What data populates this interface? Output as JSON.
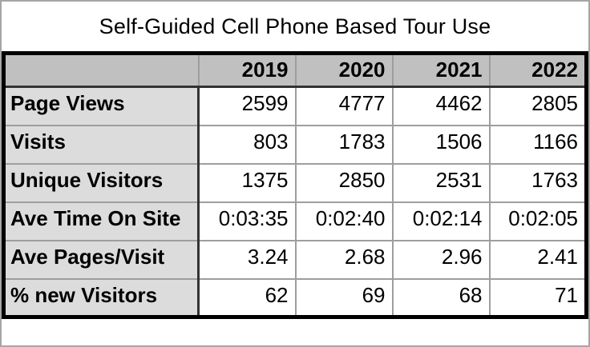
{
  "chart_data": {
    "type": "table",
    "title": "Self-Guided Cell Phone Based Tour Use",
    "columns": [
      "2019",
      "2020",
      "2021",
      "2022"
    ],
    "rows": [
      {
        "label": "Page Views",
        "values": [
          "2599",
          "4777",
          "4462",
          "2805"
        ]
      },
      {
        "label": "Visits",
        "values": [
          "803",
          "1783",
          "1506",
          "1166"
        ]
      },
      {
        "label": "Unique Visitors",
        "values": [
          "1375",
          "2850",
          "2531",
          "1763"
        ]
      },
      {
        "label": "Ave Time On Site",
        "values": [
          "0:03:35",
          "0:02:40",
          "0:02:14",
          "0:02:05"
        ]
      },
      {
        "label": "Ave Pages/Visit",
        "values": [
          "3.24",
          "2.68",
          "2.96",
          "2.41"
        ]
      },
      {
        "label": "% new Visitors",
        "values": [
          "62",
          "69",
          "68",
          "71"
        ]
      }
    ],
    "layout": {
      "header_position": "top",
      "row_labels_position": "left",
      "values_alignment": "right"
    }
  },
  "colors": {
    "header_bg": "#c0c0c0",
    "row_label_bg": "#dcdcdc",
    "cell_bg": "#ffffff",
    "grid_line": "#9e9e9e",
    "header_divider": "#333333",
    "outer_border": "#000000",
    "frame_border": "#a6a6a6",
    "text": "#000000"
  }
}
